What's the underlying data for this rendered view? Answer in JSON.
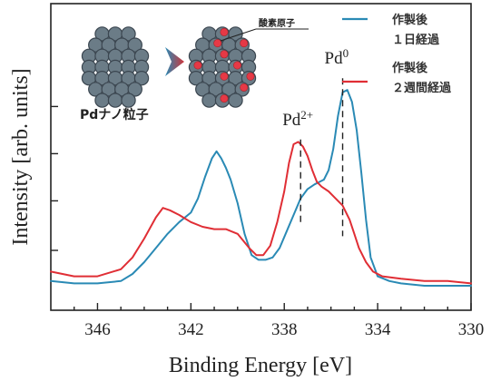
{
  "chart_data": {
    "type": "line",
    "xlabel": "Binding Energy [eV]",
    "ylabel": "Intensity [arb. units]",
    "xlim": [
      348,
      330
    ],
    "x_reversed": true,
    "ylim": [
      0,
      1.0
    ],
    "x_ticks": [
      {
        "value": 346,
        "label": "346"
      },
      {
        "value": 342,
        "label": "342"
      },
      {
        "value": 338,
        "label": "338"
      },
      {
        "value": 334,
        "label": "334"
      },
      {
        "value": 330,
        "label": "330"
      }
    ],
    "y_tick_values": [
      0.15,
      0.36,
      0.56,
      0.76
    ],
    "y_tick_labels_shown": false,
    "grid": false,
    "legend_position": "top-right",
    "annotations": [
      {
        "text": "Pd",
        "sup": "0",
        "x": 335.5,
        "y_top": 0.88,
        "y_bottom": 0.21
      },
      {
        "text": "Pd",
        "sup": "2+",
        "x": 337.3,
        "y_top": 0.62,
        "y_bottom": 0.26
      }
    ],
    "series": [
      {
        "name": "作製後 １日経過",
        "color": "#2a8ab5",
        "x": [
          348.0,
          347.0,
          346.0,
          345.0,
          344.5,
          344.0,
          343.5,
          343.0,
          342.5,
          342.0,
          341.7,
          341.4,
          341.1,
          340.9,
          340.7,
          340.5,
          340.3,
          340.0,
          339.7,
          339.4,
          339.1,
          338.8,
          338.5,
          338.2,
          337.9,
          337.6,
          337.3,
          337.0,
          336.7,
          336.5,
          336.3,
          336.1,
          335.9,
          335.7,
          335.5,
          335.3,
          335.1,
          334.9,
          334.7,
          334.5,
          334.3,
          334.0,
          333.5,
          333.0,
          332.0,
          331.0,
          330.0
        ],
        "values": [
          0.02,
          0.01,
          0.01,
          0.02,
          0.05,
          0.1,
          0.16,
          0.22,
          0.27,
          0.31,
          0.37,
          0.46,
          0.54,
          0.57,
          0.54,
          0.5,
          0.45,
          0.35,
          0.22,
          0.13,
          0.11,
          0.11,
          0.12,
          0.16,
          0.23,
          0.3,
          0.37,
          0.41,
          0.43,
          0.44,
          0.45,
          0.49,
          0.58,
          0.72,
          0.82,
          0.83,
          0.78,
          0.66,
          0.48,
          0.28,
          0.12,
          0.04,
          0.02,
          0.01,
          0.0,
          0.0,
          0.0
        ]
      },
      {
        "name": "作製後 ２週間経過",
        "color": "#e02e35",
        "x": [
          348.0,
          347.0,
          346.0,
          345.0,
          344.5,
          344.0,
          343.5,
          343.2,
          342.9,
          342.5,
          342.0,
          341.5,
          341.0,
          340.5,
          340.0,
          339.5,
          339.2,
          338.9,
          338.6,
          338.3,
          338.0,
          337.8,
          337.6,
          337.4,
          337.2,
          337.0,
          336.8,
          336.6,
          336.4,
          336.1,
          335.8,
          335.5,
          335.2,
          335.0,
          334.8,
          334.5,
          334.2,
          333.8,
          333.0,
          332.0,
          331.0,
          330.0
        ],
        "values": [
          0.06,
          0.04,
          0.04,
          0.07,
          0.12,
          0.2,
          0.29,
          0.33,
          0.32,
          0.3,
          0.27,
          0.25,
          0.24,
          0.24,
          0.22,
          0.16,
          0.13,
          0.13,
          0.17,
          0.27,
          0.4,
          0.52,
          0.6,
          0.61,
          0.59,
          0.55,
          0.49,
          0.44,
          0.42,
          0.4,
          0.37,
          0.34,
          0.28,
          0.22,
          0.16,
          0.1,
          0.06,
          0.04,
          0.03,
          0.02,
          0.02,
          0.01
        ]
      }
    ]
  },
  "inset": {
    "nanoparticle_label": "Pdナノ粒子",
    "oxygen_label": "酸素原子"
  },
  "colors": {
    "series_1": "#2a8ab5",
    "series_2": "#e02e35",
    "particle_fill": "#6b7c87",
    "particle_stroke": "#3b4650",
    "oxygen_fill": "#e63946"
  }
}
